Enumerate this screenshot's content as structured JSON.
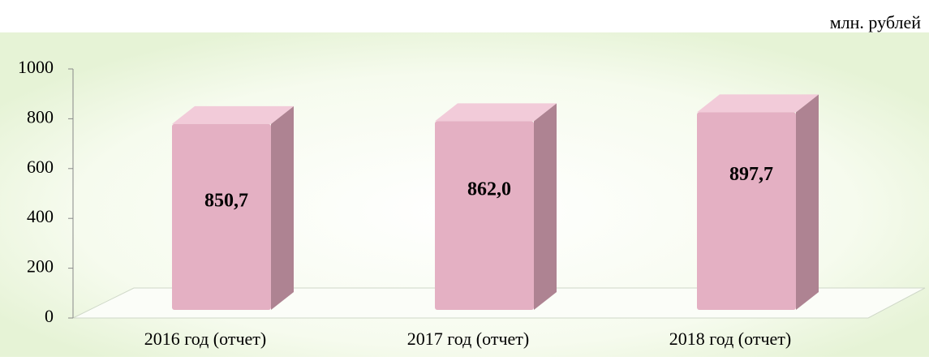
{
  "chart_data": {
    "type": "bar",
    "unit_label": "млн. рублей",
    "categories": [
      "2016 год (отчет)",
      "2017 год (отчет)",
      "2018 год (отчет)"
    ],
    "values": [
      850.7,
      862.0,
      897.7
    ],
    "value_labels": [
      "850,7",
      "862,0",
      "897,7"
    ],
    "color": "#e4b0c3",
    "ylim": [
      0,
      1000
    ],
    "yticks": [
      0,
      200,
      400,
      600,
      800,
      1000
    ]
  }
}
